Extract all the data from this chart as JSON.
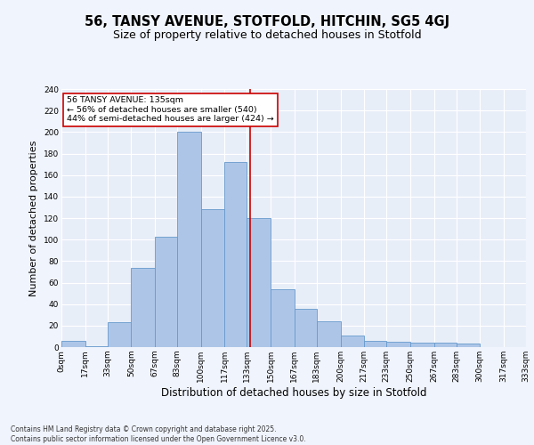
{
  "title1": "56, TANSY AVENUE, STOTFOLD, HITCHIN, SG5 4GJ",
  "title2": "Size of property relative to detached houses in Stotfold",
  "xlabel": "Distribution of detached houses by size in Stotfold",
  "ylabel": "Number of detached properties",
  "bin_labels": [
    "0sqm",
    "17sqm",
    "33sqm",
    "50sqm",
    "67sqm",
    "83sqm",
    "100sqm",
    "117sqm",
    "133sqm",
    "150sqm",
    "167sqm",
    "183sqm",
    "200sqm",
    "217sqm",
    "233sqm",
    "250sqm",
    "267sqm",
    "283sqm",
    "300sqm",
    "317sqm",
    "333sqm"
  ],
  "bin_edges": [
    0,
    17,
    33,
    50,
    67,
    83,
    100,
    117,
    133,
    150,
    167,
    183,
    200,
    217,
    233,
    250,
    267,
    283,
    300,
    317,
    333
  ],
  "bar_heights": [
    6,
    1,
    23,
    74,
    103,
    200,
    128,
    172,
    120,
    54,
    36,
    24,
    11,
    6,
    5,
    4,
    4,
    3,
    0,
    0
  ],
  "bar_color": "#adc6e8",
  "bar_edge_color": "#6699cc",
  "vline_x": 135,
  "vline_color": "#cc0000",
  "annotation_text": "56 TANSY AVENUE: 135sqm\n← 56% of detached houses are smaller (540)\n44% of semi-detached houses are larger (424) →",
  "annotation_box_color": "#ffffff",
  "annotation_box_edge_color": "#cc0000",
  "ylim": [
    0,
    240
  ],
  "yticks": [
    0,
    20,
    40,
    60,
    80,
    100,
    120,
    140,
    160,
    180,
    200,
    220,
    240
  ],
  "bg_color": "#e8eef8",
  "fig_bg_color": "#f0f4fc",
  "grid_color": "#ffffff",
  "footer": "Contains HM Land Registry data © Crown copyright and database right 2025.\nContains public sector information licensed under the Open Government Licence v3.0.",
  "title1_fontsize": 10.5,
  "title2_fontsize": 9,
  "xlabel_fontsize": 8.5,
  "ylabel_fontsize": 8,
  "tick_fontsize": 6.5,
  "footer_fontsize": 5.5,
  "annotation_fontsize": 6.8
}
